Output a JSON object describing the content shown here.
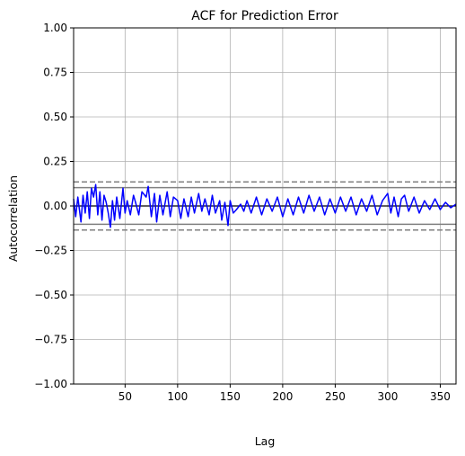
{
  "chart_data": {
    "type": "line",
    "title": "ACF for Prediction Error",
    "xlabel": "Lag",
    "ylabel": "Autocorrelation",
    "xlim": [
      1,
      365
    ],
    "ylim": [
      -1.0,
      1.0
    ],
    "xticks": [
      50,
      100,
      150,
      200,
      250,
      300,
      350
    ],
    "yticks": [
      -1.0,
      -0.75,
      -0.5,
      -0.25,
      0.0,
      0.25,
      0.5,
      0.75,
      1.0
    ],
    "ytick_labels": [
      "−1.00",
      "−0.75",
      "−0.50",
      "−0.25",
      "0.00",
      "0.25",
      "0.50",
      "0.75",
      "1.00"
    ],
    "xtick_labels": [
      "50",
      "100",
      "150",
      "200",
      "250",
      "300",
      "350"
    ],
    "grid": true,
    "confidence_bands": {
      "solid": [
        0.1026,
        -0.1026
      ],
      "dashed": [
        0.135,
        -0.135
      ],
      "zero_line": 0.0
    },
    "series": [
      {
        "color": "#0000ff",
        "x": [
          1,
          3,
          5,
          8,
          10,
          12,
          14,
          16,
          18,
          20,
          22,
          24,
          26,
          28,
          30,
          32,
          34,
          36,
          38,
          40,
          42,
          45,
          48,
          50,
          52,
          55,
          58,
          60,
          63,
          66,
          70,
          72,
          75,
          78,
          80,
          83,
          86,
          90,
          93,
          96,
          100,
          103,
          106,
          110,
          113,
          116,
          120,
          123,
          126,
          130,
          133,
          136,
          140,
          142,
          145,
          148,
          150,
          153,
          156,
          160,
          163,
          166,
          170,
          175,
          180,
          185,
          190,
          195,
          200,
          205,
          210,
          215,
          220,
          225,
          230,
          235,
          240,
          245,
          250,
          255,
          260,
          265,
          270,
          275,
          280,
          285,
          290,
          295,
          300,
          303,
          306,
          310,
          313,
          316,
          320,
          325,
          330,
          335,
          340,
          345,
          350,
          355,
          360,
          365
        ],
        "y": [
          0.04,
          -0.06,
          0.05,
          -0.09,
          0.06,
          -0.04,
          0.08,
          -0.07,
          0.1,
          0.05,
          0.12,
          -0.05,
          0.08,
          -0.08,
          0.06,
          0.02,
          -0.04,
          -0.12,
          0.03,
          -0.08,
          0.05,
          -0.07,
          0.1,
          -0.04,
          0.03,
          -0.05,
          0.06,
          0.02,
          -0.05,
          0.08,
          0.05,
          0.11,
          -0.06,
          0.07,
          -0.09,
          0.06,
          -0.05,
          0.08,
          -0.06,
          0.05,
          0.03,
          -0.07,
          0.04,
          -0.06,
          0.05,
          -0.04,
          0.07,
          -0.03,
          0.04,
          -0.05,
          0.06,
          -0.04,
          0.03,
          -0.08,
          0.02,
          -0.11,
          0.03,
          -0.04,
          -0.02,
          0.01,
          -0.03,
          0.03,
          -0.04,
          0.05,
          -0.05,
          0.04,
          -0.03,
          0.05,
          -0.06,
          0.04,
          -0.05,
          0.05,
          -0.04,
          0.06,
          -0.03,
          0.05,
          -0.05,
          0.04,
          -0.04,
          0.05,
          -0.03,
          0.05,
          -0.05,
          0.04,
          -0.03,
          0.06,
          -0.05,
          0.03,
          0.07,
          -0.04,
          0.05,
          -0.06,
          0.04,
          0.06,
          -0.03,
          0.05,
          -0.04,
          0.03,
          -0.02,
          0.04,
          -0.02,
          0.02,
          -0.01,
          0.01
        ]
      }
    ]
  }
}
